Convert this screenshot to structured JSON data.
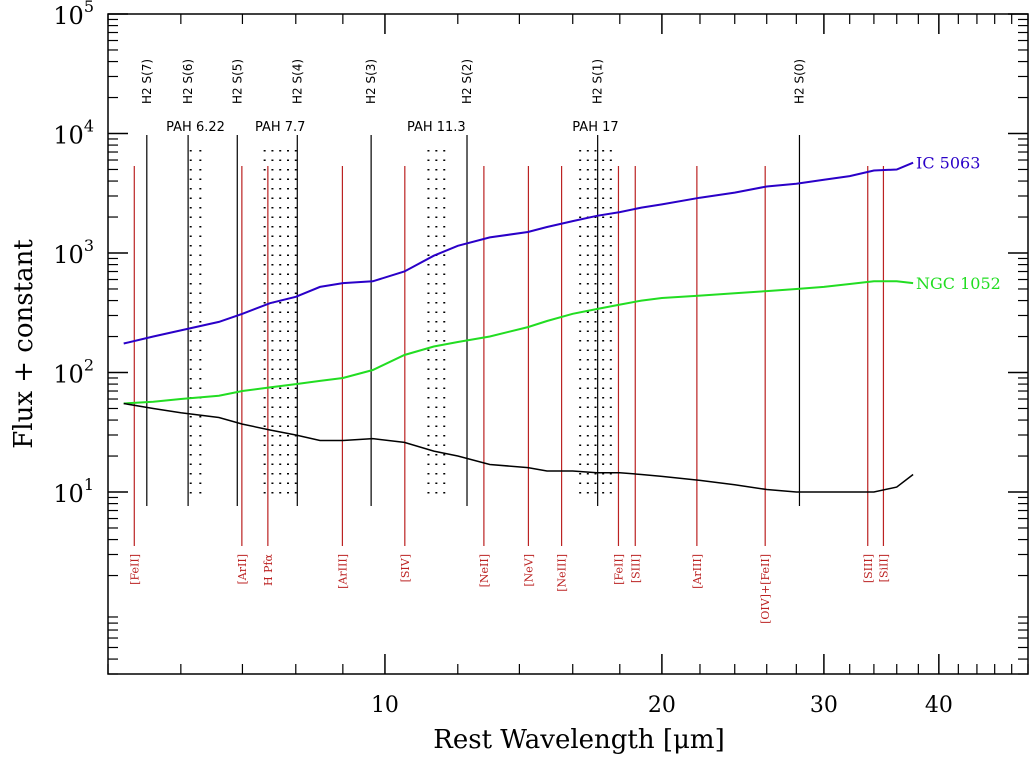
{
  "chart_data": {
    "type": "line",
    "title": "",
    "xlabel": "Rest Wavelength [μm]",
    "ylabel": "Flux + constant",
    "xscale": "log",
    "yscale": "log",
    "xlim": [
      5.0,
      50.0
    ],
    "ylim": [
      0.3,
      100000
    ],
    "grid": false,
    "x_ticks": [
      {
        "value": 10,
        "label": "10"
      },
      {
        "value": 20,
        "label": "20"
      },
      {
        "value": 30,
        "label": "30"
      },
      {
        "value": 40,
        "label": "40"
      }
    ],
    "y_ticks": [
      {
        "value": 10,
        "base": "10",
        "exp": "1"
      },
      {
        "value": 100,
        "base": "10",
        "exp": "2"
      },
      {
        "value": 1000,
        "base": "10",
        "exp": "3"
      },
      {
        "value": 10000,
        "base": "10",
        "exp": "4"
      },
      {
        "value": 100000,
        "base": "10",
        "exp": "5"
      }
    ],
    "series": [
      {
        "name": "IC 5063",
        "color": "#2a00c8",
        "x": [
          5.2,
          5.6,
          6.0,
          6.6,
          7.0,
          7.5,
          8.0,
          8.5,
          9.0,
          9.7,
          10.5,
          11.3,
          12.0,
          13.0,
          14.3,
          15.0,
          16.0,
          17.0,
          18.0,
          19.0,
          20.0,
          22.0,
          24.0,
          26.0,
          28.0,
          30.0,
          32.0,
          34.0,
          36.0,
          37.5
        ],
        "y": [
          175,
          200,
          225,
          265,
          310,
          380,
          430,
          520,
          560,
          580,
          700,
          950,
          1150,
          1350,
          1500,
          1650,
          1850,
          2050,
          2200,
          2400,
          2550,
          2900,
          3200,
          3600,
          3800,
          4100,
          4400,
          4900,
          5000,
          5700
        ]
      },
      {
        "name": "NGC 1052",
        "color": "#22dd22",
        "x": [
          5.2,
          5.6,
          6.0,
          6.6,
          7.0,
          7.5,
          8.0,
          8.5,
          9.0,
          9.7,
          10.5,
          11.3,
          12.0,
          13.0,
          14.3,
          15.0,
          16.0,
          17.0,
          18.0,
          19.0,
          20.0,
          22.0,
          24.0,
          26.0,
          28.0,
          30.0,
          32.0,
          34.0,
          36.0,
          37.5
        ],
        "y": [
          55,
          57,
          60,
          64,
          70,
          75,
          80,
          85,
          90,
          105,
          140,
          165,
          180,
          200,
          240,
          270,
          310,
          340,
          370,
          400,
          420,
          440,
          460,
          480,
          500,
          520,
          550,
          580,
          580,
          560
        ]
      },
      {
        "name": "",
        "color": "#000000",
        "x": [
          5.2,
          5.6,
          6.0,
          6.6,
          7.0,
          7.5,
          8.0,
          8.5,
          9.0,
          9.7,
          10.5,
          11.3,
          12.0,
          13.0,
          14.3,
          15.0,
          16.0,
          17.0,
          18.0,
          19.0,
          20.0,
          22.0,
          24.0,
          26.0,
          28.0,
          30.0,
          32.0,
          34.0,
          36.0,
          37.5
        ],
        "y": [
          55,
          50,
          46,
          42,
          37,
          33,
          30,
          27,
          27,
          28,
          26,
          22,
          20,
          17,
          16,
          15,
          15,
          14.5,
          14.5,
          14,
          13.5,
          12.5,
          11.5,
          10.5,
          10,
          10,
          10,
          10,
          11,
          14
        ]
      }
    ],
    "h2_lines": [
      {
        "x": 5.51,
        "label": "H2 S(7)"
      },
      {
        "x": 6.11,
        "label": "H2 S(6)"
      },
      {
        "x": 6.91,
        "label": "H2 S(5)"
      },
      {
        "x": 8.03,
        "label": "H2 S(4)"
      },
      {
        "x": 9.66,
        "label": "H2 S(3)"
      },
      {
        "x": 12.28,
        "label": "H2 S(2)"
      },
      {
        "x": 17.03,
        "label": "H2 S(1)"
      },
      {
        "x": 28.22,
        "label": "H2 S(0)"
      }
    ],
    "pah_bands": [
      {
        "x1": 6.15,
        "x2": 6.3,
        "label": "PAH 6.22"
      },
      {
        "x1": 7.4,
        "x2": 8.0,
        "label": "PAH 7.7"
      },
      {
        "x1": 11.15,
        "x2": 11.6,
        "label": "PAH 11.3"
      },
      {
        "x1": 16.3,
        "x2": 17.6,
        "label": "PAH 17"
      }
    ],
    "fine_structure_lines": [
      {
        "x": 5.34,
        "label": "[FeII]"
      },
      {
        "x": 6.99,
        "label": "[ArII]"
      },
      {
        "x": 7.46,
        "label": "H Pfα"
      },
      {
        "x": 8.99,
        "label": "[ArIII]"
      },
      {
        "x": 10.51,
        "label": "[SIV]"
      },
      {
        "x": 12.81,
        "label": "[NeII]"
      },
      {
        "x": 14.32,
        "label": "[NeV]"
      },
      {
        "x": 15.56,
        "label": "[NeIII]"
      },
      {
        "x": 17.94,
        "label": "[FeII]"
      },
      {
        "x": 18.71,
        "label": "[SIII]"
      },
      {
        "x": 21.83,
        "label": "[ArIII]"
      },
      {
        "x": 25.9,
        "label": "[OIV]+[FeII]"
      },
      {
        "x": 33.48,
        "label": "[SIII]"
      },
      {
        "x": 34.82,
        "label": "[SiII]"
      }
    ],
    "h2_color": "#000000",
    "line_color": "#bb2222"
  }
}
